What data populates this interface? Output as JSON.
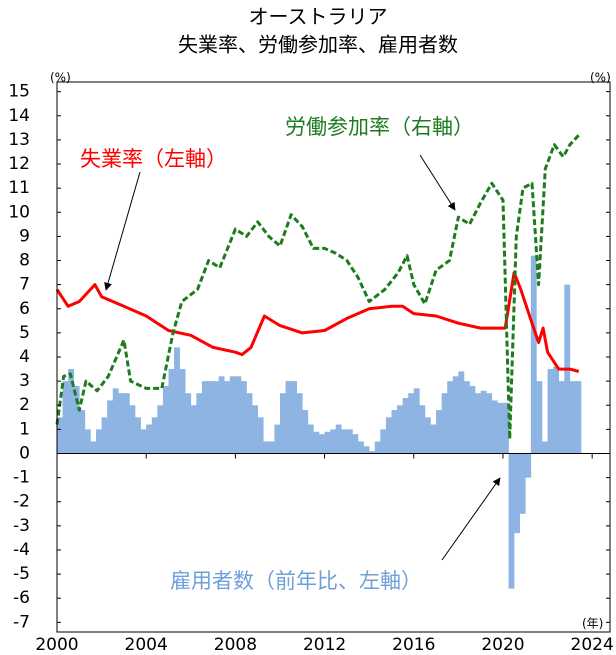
{
  "chart_data": {
    "type": "bar-line",
    "title": "オーストラリア",
    "subtitle": "失業率、労働参加率、雇用者数",
    "ylabel": "(%)",
    "y2label": "(%)",
    "xlabel": "(年)",
    "xlim": [
      2000,
      2024.8
    ],
    "xticks": [
      2000,
      2004,
      2008,
      2012,
      2016,
      2020,
      2024
    ],
    "ylim": [
      -7.4,
      15.4
    ],
    "yticks": [
      -7,
      -6,
      -5,
      -4,
      -3,
      -2,
      -1,
      0,
      1,
      2,
      3,
      4,
      5,
      6,
      7,
      8,
      9,
      10,
      11,
      12,
      13,
      14,
      15
    ],
    "y2lim": [
      -7.4,
      15.4
    ],
    "series": [
      {
        "name": "雇用者数（前年比、左軸）",
        "type": "bar",
        "color": "#8db4e2",
        "x": [
          2000,
          2000.25,
          2000.5,
          2000.75,
          2001,
          2001.25,
          2001.5,
          2001.75,
          2002,
          2002.25,
          2002.5,
          2002.75,
          2003,
          2003.25,
          2003.5,
          2003.75,
          2004,
          2004.25,
          2004.5,
          2004.75,
          2005,
          2005.25,
          2005.5,
          2005.75,
          2006,
          2006.25,
          2006.5,
          2006.75,
          2007,
          2007.25,
          2007.5,
          2007.75,
          2008,
          2008.25,
          2008.5,
          2008.75,
          2009,
          2009.25,
          2009.5,
          2009.75,
          2010,
          2010.25,
          2010.5,
          2010.75,
          2011,
          2011.25,
          2011.5,
          2011.75,
          2012,
          2012.25,
          2012.5,
          2012.75,
          2013,
          2013.25,
          2013.5,
          2013.75,
          2014,
          2014.25,
          2014.5,
          2014.75,
          2015,
          2015.25,
          2015.5,
          2015.75,
          2016,
          2016.25,
          2016.5,
          2016.75,
          2017,
          2017.25,
          2017.5,
          2017.75,
          2018,
          2018.25,
          2018.5,
          2018.75,
          2019,
          2019.25,
          2019.5,
          2019.75,
          2020,
          2020.25,
          2020.5,
          2020.75,
          2021,
          2021.25,
          2021.5,
          2021.75,
          2022,
          2022.25,
          2022.5,
          2022.75,
          2023,
          2023.25
        ],
        "values": [
          1.5,
          3.0,
          3.5,
          2.8,
          1.8,
          1.0,
          0.5,
          1.0,
          1.5,
          2.2,
          2.7,
          2.5,
          2.5,
          2.0,
          1.5,
          1.0,
          1.2,
          1.5,
          2.0,
          2.8,
          3.5,
          4.4,
          3.5,
          2.5,
          2.0,
          2.5,
          3.0,
          3.0,
          3.0,
          3.2,
          3.0,
          3.2,
          3.2,
          3.0,
          2.5,
          2.0,
          1.5,
          0.5,
          0.5,
          1.2,
          2.5,
          3.0,
          3.0,
          2.5,
          1.8,
          1.2,
          0.9,
          0.8,
          0.9,
          1.0,
          1.2,
          1.0,
          1.0,
          0.8,
          0.5,
          0.3,
          0.1,
          0.5,
          1.0,
          1.5,
          1.8,
          2.0,
          2.3,
          2.5,
          2.7,
          2.0,
          1.5,
          1.2,
          1.8,
          2.5,
          3.0,
          3.2,
          3.4,
          3.0,
          2.8,
          2.5,
          2.6,
          2.5,
          2.2,
          2.1,
          2.1,
          -5.6,
          -3.3,
          -2.5,
          -1.0,
          8.2,
          3.0,
          0.5,
          3.5,
          3.6,
          3.0,
          7.0,
          3.0,
          3.0
        ]
      },
      {
        "name": "失業率（左軸）",
        "type": "line",
        "color": "#ff0000",
        "x": [
          2000,
          2000.5,
          2001,
          2001.7,
          2002,
          2003,
          2004,
          2005,
          2006,
          2007,
          2008,
          2008.3,
          2008.7,
          2009.3,
          2010,
          2011,
          2012,
          2013,
          2014,
          2015,
          2015.5,
          2016,
          2017,
          2018,
          2019,
          2020.1,
          2020.5,
          2020.8,
          2021.3,
          2021.6,
          2021.8,
          2022,
          2022.5,
          2023,
          2023.4
        ],
        "values": [
          6.8,
          6.1,
          6.3,
          7.0,
          6.5,
          6.1,
          5.7,
          5.1,
          4.9,
          4.4,
          4.2,
          4.1,
          4.4,
          5.7,
          5.3,
          5.0,
          5.1,
          5.6,
          6.0,
          6.1,
          6.1,
          5.8,
          5.7,
          5.4,
          5.2,
          5.2,
          7.5,
          6.8,
          5.4,
          4.6,
          5.2,
          4.2,
          3.5,
          3.5,
          3.4
        ]
      },
      {
        "name": "労働参加率（右軸）",
        "type": "line",
        "axis": "y2",
        "color": "#1e7b1e",
        "dashed": true,
        "x": [
          2000,
          2000.3,
          2000.6,
          2001,
          2001.3,
          2001.8,
          2002.3,
          2003,
          2003.3,
          2004,
          2004.7,
          2005.2,
          2005.6,
          2006.3,
          2006.8,
          2007.3,
          2008,
          2008.5,
          2009,
          2009.5,
          2010,
          2010.5,
          2011,
          2011.5,
          2012,
          2012.5,
          2013,
          2013.5,
          2014,
          2014.7,
          2015.3,
          2015.7,
          2016,
          2016.5,
          2017,
          2017.6,
          2018,
          2018.5,
          2019,
          2019.5,
          2020,
          2020.3,
          2020.6,
          2020.9,
          2021.3,
          2021.6,
          2021.9,
          2022.3,
          2022.7,
          2023,
          2023.4
        ],
        "values": [
          1.2,
          3.2,
          3.3,
          1.8,
          3.0,
          2.6,
          3.2,
          4.7,
          3.0,
          2.7,
          2.7,
          5.0,
          6.3,
          6.8,
          8.0,
          7.7,
          9.3,
          9.0,
          9.6,
          9.0,
          8.6,
          9.9,
          9.4,
          8.5,
          8.5,
          8.3,
          8.0,
          7.3,
          6.3,
          6.8,
          7.5,
          8.2,
          7.0,
          6.2,
          7.6,
          8.0,
          9.8,
          9.5,
          10.4,
          11.2,
          10.5,
          0.6,
          9.0,
          11.0,
          11.2,
          7.0,
          11.8,
          12.8,
          12.3,
          12.8,
          13.2
        ]
      }
    ]
  }
}
